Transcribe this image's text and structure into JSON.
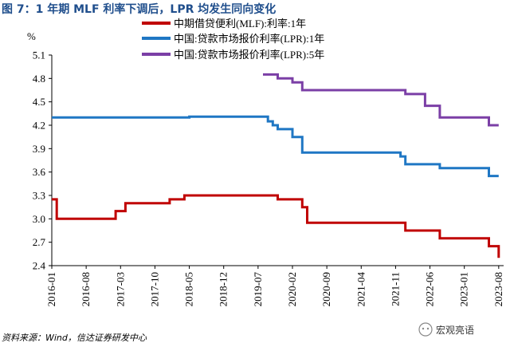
{
  "chart_data": {
    "type": "line",
    "title": "图 7：1 年期 MLF 利率下调后，LPR 均发生同向变化",
    "ylabel": "%",
    "ylim": [
      2.4,
      5.1
    ],
    "yticks": [
      "5.1",
      "4.8",
      "4.5",
      "4.2",
      "3.9",
      "3.6",
      "3.3",
      "3.0",
      "2.7",
      "2.4"
    ],
    "ytick_values": [
      5.1,
      4.8,
      4.5,
      4.2,
      3.9,
      3.6,
      3.3,
      3.0,
      2.7,
      2.4
    ],
    "x_range": [
      "2016-01",
      "2023-09"
    ],
    "xticks": [
      "2016-01",
      "2016-08",
      "2017-03",
      "2017-10",
      "2018-05",
      "2018-12",
      "2019-07",
      "2020-02",
      "2020-09",
      "2021-04",
      "2021-11",
      "2022-06",
      "2023-01",
      "2023-08"
    ],
    "legend_position": "top-right",
    "series": [
      {
        "name": "中期借贷便利(MLF):利率:1年",
        "color": "#c00000",
        "points": [
          [
            "2016-01",
            3.25
          ],
          [
            "2016-02",
            3.0
          ],
          [
            "2017-02",
            3.1
          ],
          [
            "2017-04",
            3.2
          ],
          [
            "2018-01",
            3.25
          ],
          [
            "2018-04",
            3.3
          ],
          [
            "2019-11",
            3.25
          ],
          [
            "2020-04",
            3.15
          ],
          [
            "2020-05",
            2.95
          ],
          [
            "2022-01",
            2.85
          ],
          [
            "2022-08",
            2.75
          ],
          [
            "2023-06",
            2.65
          ],
          [
            "2023-08",
            2.5
          ]
        ]
      },
      {
        "name": "中国:贷款市场报价利率(LPR):1年",
        "color": "#1f77c4",
        "points": [
          [
            "2016-01",
            4.3
          ],
          [
            "2018-05",
            4.31
          ],
          [
            "2019-08",
            4.31
          ],
          [
            "2019-09",
            4.25
          ],
          [
            "2019-10",
            4.2
          ],
          [
            "2019-11",
            4.15
          ],
          [
            "2020-02",
            4.05
          ],
          [
            "2020-04",
            3.85
          ],
          [
            "2021-12",
            3.8
          ],
          [
            "2022-01",
            3.7
          ],
          [
            "2022-08",
            3.65
          ],
          [
            "2023-06",
            3.55
          ],
          [
            "2023-08",
            3.55
          ]
        ]
      },
      {
        "name": "中国:贷款市场报价利率(LPR):5年",
        "color": "#7b3fa6",
        "points": [
          [
            "2019-08",
            4.85
          ],
          [
            "2019-11",
            4.8
          ],
          [
            "2020-02",
            4.75
          ],
          [
            "2020-04",
            4.65
          ],
          [
            "2022-01",
            4.6
          ],
          [
            "2022-05",
            4.45
          ],
          [
            "2022-08",
            4.3
          ],
          [
            "2023-06",
            4.2
          ],
          [
            "2023-08",
            4.2
          ]
        ]
      }
    ]
  },
  "footer": {
    "source": "资料来源：Wind，信达证券研发中心",
    "watermark": "宏观亮语"
  }
}
